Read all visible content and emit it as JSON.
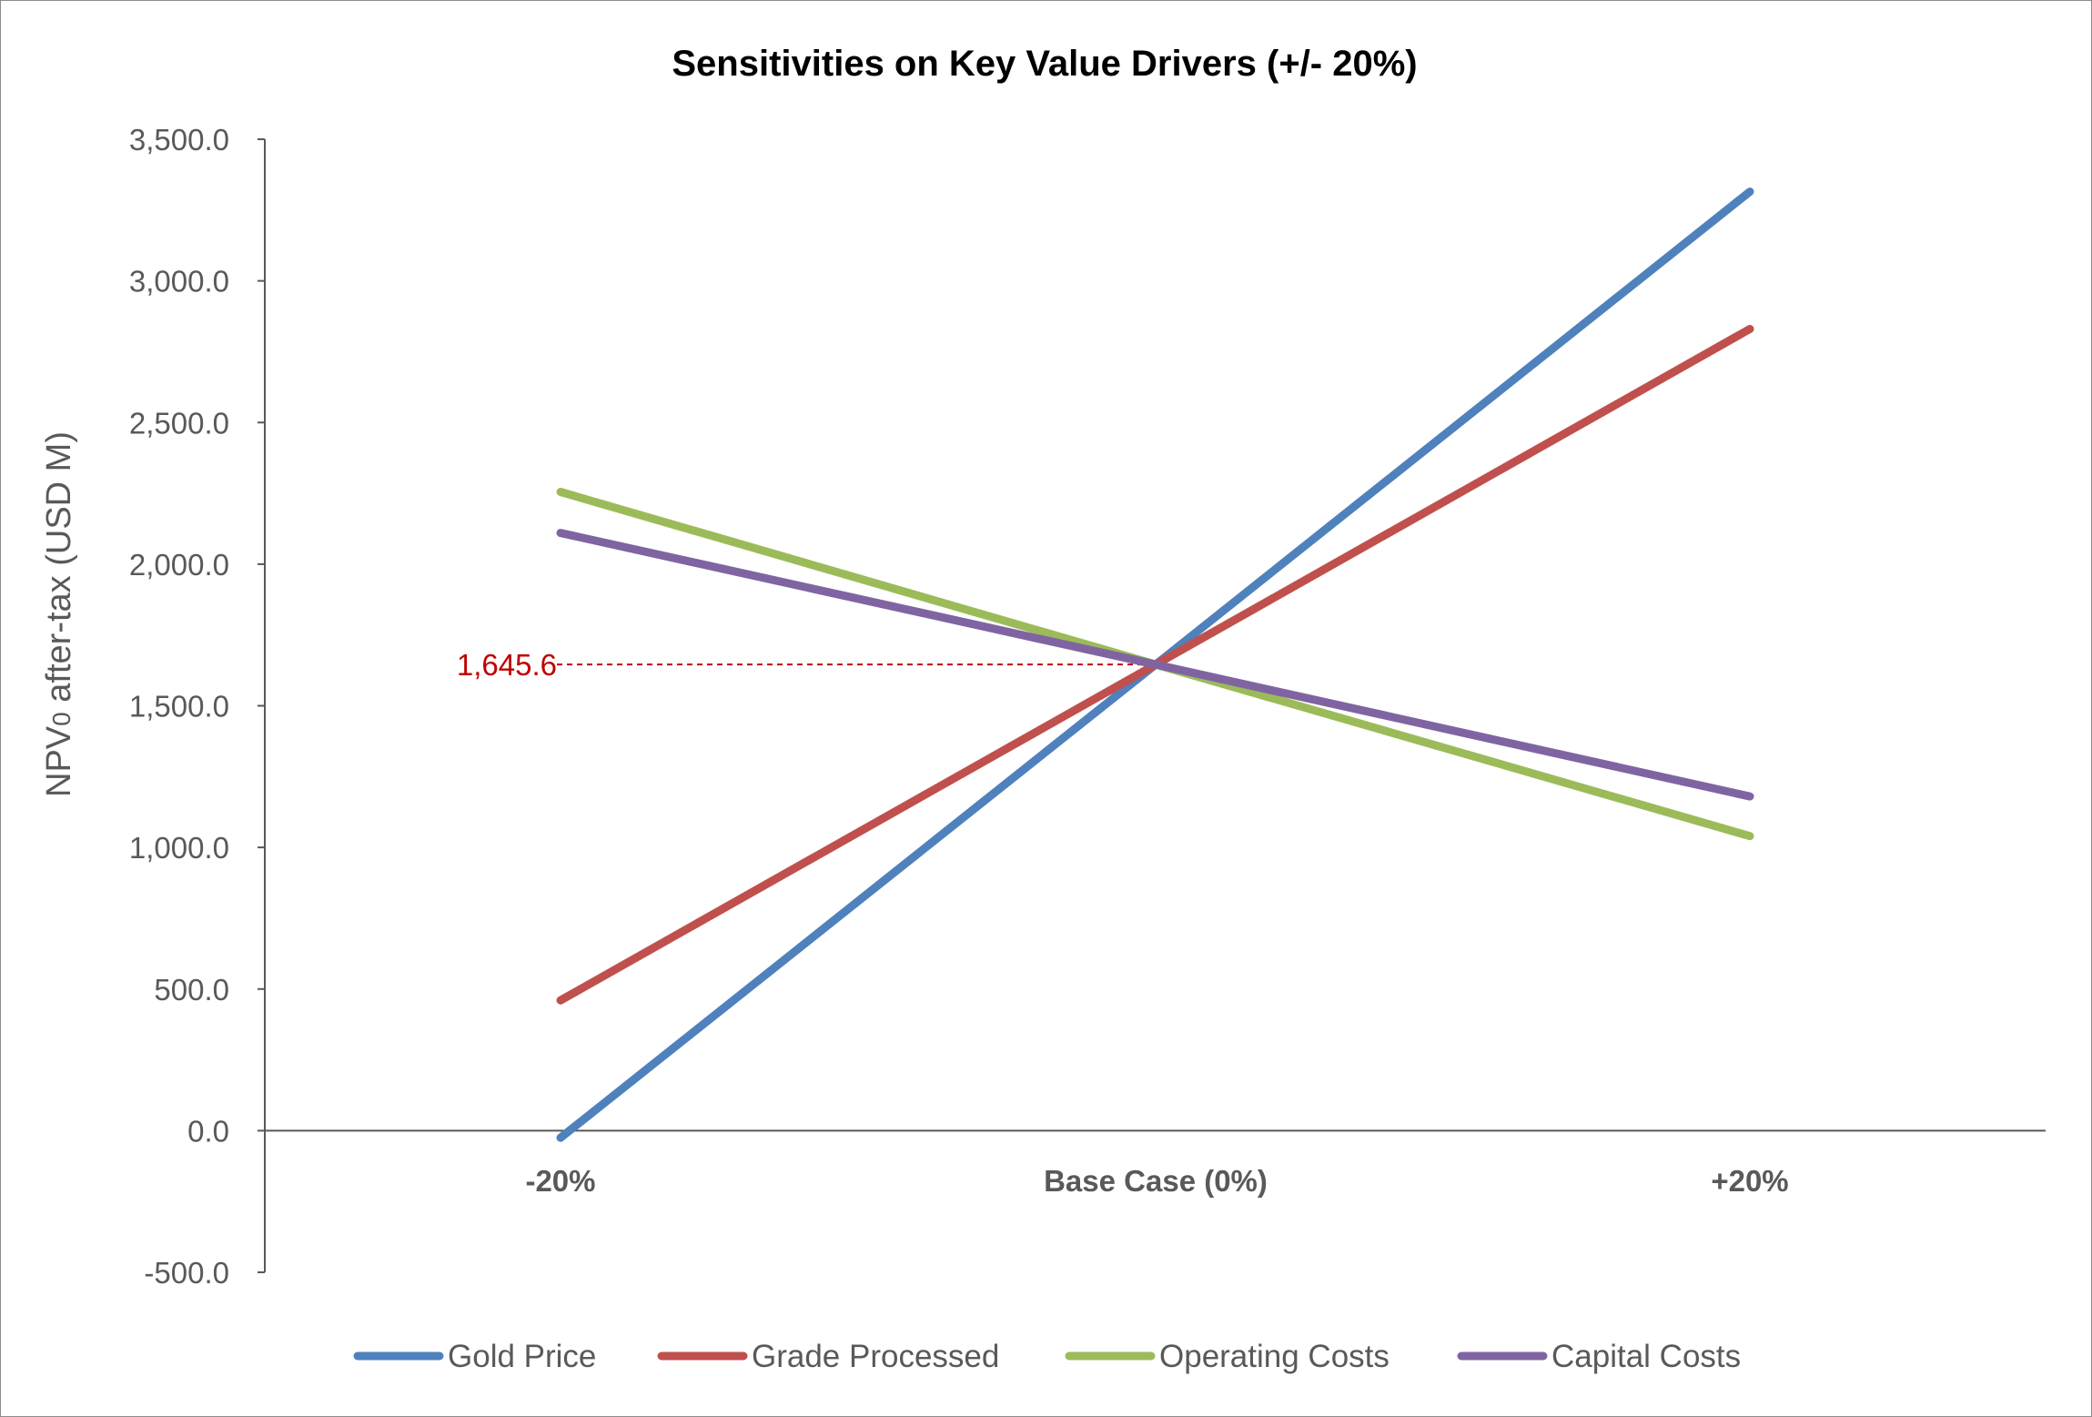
{
  "chart_data": {
    "type": "line",
    "title": "Sensitivities on Key Value Drivers (+/- 20%)",
    "xlabel": "",
    "ylabel": "NPV0 after-tax (USD M)",
    "ylabel_parts": {
      "pre": "NPV",
      "sub": "0",
      "post": " after-tax (USD M)"
    },
    "categories": [
      "-20%",
      "Base Case (0%)",
      "+20%"
    ],
    "ylim": [
      -500,
      3500
    ],
    "yticks": [
      -500,
      0,
      500,
      1000,
      1500,
      2000,
      2500,
      3000,
      3500
    ],
    "ytick_labels": [
      "-500.0",
      "0.0",
      "500.0",
      "1,000.0",
      "1,500.0",
      "2,000.0",
      "2,500.0",
      "3,000.0",
      "3,500.0"
    ],
    "grid": false,
    "legend_position": "bottom",
    "series": [
      {
        "name": "Gold Price",
        "color": "#4f81bd",
        "values": [
          -25,
          1645.6,
          3315
        ]
      },
      {
        "name": "Grade Processed",
        "color": "#c0504d",
        "values": [
          460,
          1645.6,
          2830
        ]
      },
      {
        "name": "Operating Costs",
        "color": "#9bbb59",
        "values": [
          2255,
          1645.6,
          1040
        ]
      },
      {
        "name": "Capital Costs",
        "color": "#8064a2",
        "values": [
          2110,
          1645.6,
          1180
        ]
      }
    ],
    "annotation": {
      "label": "1,645.6",
      "value": 1645.6,
      "color": "#c00000"
    }
  }
}
